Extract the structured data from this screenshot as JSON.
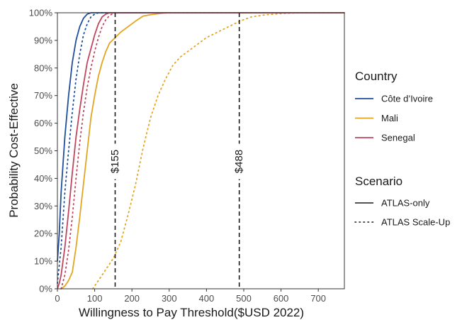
{
  "chart_data": {
    "type": "line",
    "xlabel": "Willingness to Pay Threshold($USD 2022)",
    "ylabel": "Probability Cost-Effective",
    "xlim": [
      0,
      770
    ],
    "ylim": [
      0,
      100
    ],
    "x_ticks": [
      0,
      100,
      200,
      300,
      400,
      500,
      600,
      700
    ],
    "x_tick_labels": [
      "0",
      "100",
      "200",
      "300",
      "400",
      "500",
      "600",
      "700"
    ],
    "y_ticks": [
      0,
      10,
      20,
      30,
      40,
      50,
      60,
      70,
      80,
      90,
      100
    ],
    "y_tick_labels": [
      "0%",
      "10%",
      "20%",
      "30%",
      "40%",
      "50%",
      "60%",
      "70%",
      "80%",
      "90%",
      "100%"
    ],
    "colors": {
      "Côte d'Ivoire": "#1f4e9c",
      "Mali": "#e3a521",
      "Senegal": "#c0455f"
    },
    "series": [
      {
        "name": "Côte d’Ivoire",
        "scenario": "ATLAS-only",
        "country": "Côte d'Ivoire",
        "x": [
          0,
          5,
          10,
          20,
          30,
          40,
          50,
          60,
          70,
          80,
          90,
          100,
          120,
          770
        ],
        "y": [
          10,
          20,
          35,
          55,
          70,
          82,
          90,
          95,
          98,
          99.5,
          100,
          100,
          100,
          100
        ]
      },
      {
        "name": "Côte d’Ivoire",
        "scenario": "ATLAS Scale-Up",
        "country": "Côte d'Ivoire",
        "x": [
          0,
          10,
          20,
          30,
          40,
          50,
          60,
          70,
          80,
          90,
          100,
          110,
          130,
          770
        ],
        "y": [
          2,
          15,
          35,
          50,
          64,
          76,
          85,
          92,
          96,
          98.5,
          99.5,
          100,
          100,
          100
        ]
      },
      {
        "name": "Mali",
        "scenario": "ATLAS-only",
        "country": "Mali",
        "x": [
          10,
          20,
          30,
          40,
          50,
          60,
          70,
          80,
          90,
          100,
          110,
          120,
          130,
          140,
          155,
          170,
          190,
          210,
          230,
          250,
          280,
          300,
          770
        ],
        "y": [
          0,
          1,
          3,
          6,
          15,
          26,
          38,
          50,
          62,
          70,
          77,
          82,
          86,
          89,
          91,
          93,
          95,
          97,
          98.8,
          99.3,
          99.8,
          100,
          100
        ]
      },
      {
        "name": "Mali",
        "scenario": "ATLAS Scale-Up",
        "country": "Mali",
        "x": [
          95,
          110,
          130,
          150,
          170,
          190,
          210,
          230,
          250,
          270,
          290,
          310,
          330,
          350,
          370,
          400,
          430,
          460,
          490,
          520,
          560,
          600,
          650,
          700,
          770
        ],
        "y": [
          0,
          3,
          7,
          11,
          17,
          27,
          38,
          51,
          62,
          70,
          76,
          81,
          84,
          86,
          88,
          91,
          93,
          95,
          97,
          98.5,
          99.3,
          99.7,
          100,
          100,
          100
        ]
      },
      {
        "name": "Senegal",
        "scenario": "ATLAS-only",
        "country": "Senegal",
        "x": [
          0,
          5,
          10,
          20,
          30,
          40,
          50,
          60,
          70,
          80,
          90,
          100,
          110,
          120,
          130,
          140,
          150,
          770
        ],
        "y": [
          0,
          2,
          5,
          15,
          28,
          42,
          55,
          65,
          74,
          82,
          87,
          92,
          96,
          98.5,
          99.5,
          100,
          100,
          100
        ]
      },
      {
        "name": "Senegal",
        "scenario": "ATLAS Scale-Up",
        "country": "Senegal",
        "x": [
          10,
          20,
          30,
          40,
          50,
          60,
          70,
          80,
          90,
          100,
          110,
          120,
          130,
          140,
          150,
          160,
          770
        ],
        "y": [
          0,
          5,
          14,
          26,
          40,
          53,
          64,
          73,
          80,
          86,
          91,
          95,
          97.5,
          99,
          99.8,
          100,
          100
        ]
      }
    ],
    "reference_lines": [
      {
        "x": 155,
        "label": "$155"
      },
      {
        "x": 488,
        "label": "$488"
      }
    ],
    "legend": {
      "position": "right",
      "country_title": "Country",
      "country_items": [
        {
          "label": "Côte d’Ivoire",
          "color": "#1f4e9c"
        },
        {
          "label": "Mali",
          "color": "#e3a521"
        },
        {
          "label": "Senegal",
          "color": "#c0455f"
        }
      ],
      "scenario_title": "Scenario",
      "scenario_items": [
        {
          "label": "ATLAS-only",
          "linetype": "solid"
        },
        {
          "label": "ATLAS Scale-Up",
          "linetype": "dotted"
        }
      ]
    },
    "grid": false
  }
}
